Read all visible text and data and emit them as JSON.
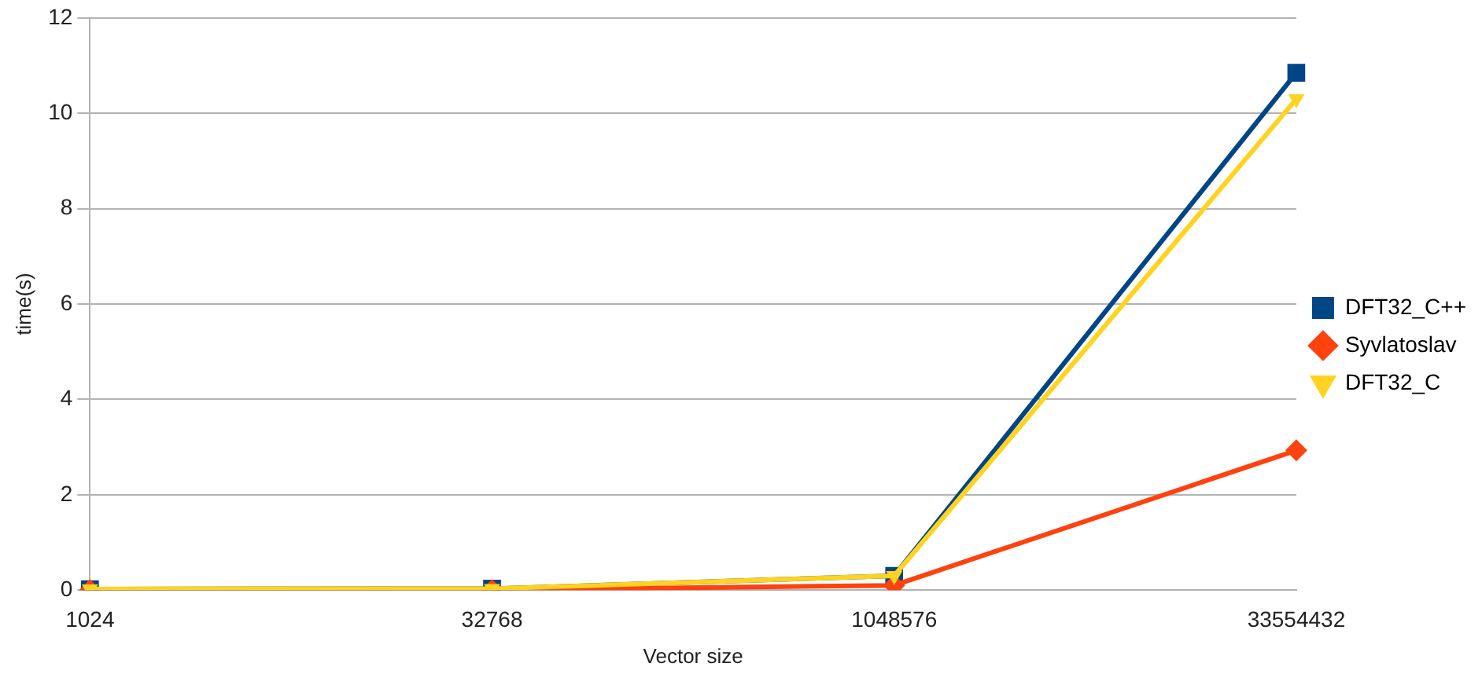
{
  "chart_data": {
    "type": "line",
    "xlabel": "Vector size",
    "ylabel": "time(s)",
    "categories": [
      "1024",
      "32768",
      "1048576",
      "33554432"
    ],
    "series": [
      {
        "name": "DFT32_C++",
        "color": "#004586",
        "marker": "square",
        "values": [
          0.02,
          0.03,
          0.3,
          10.85
        ]
      },
      {
        "name": "Syvlatoslav",
        "color": "#ff420e",
        "marker": "diamond",
        "values": [
          0,
          0,
          0.1,
          2.93
        ]
      },
      {
        "name": "DFT32_C",
        "color": "#ffd320",
        "marker": "triangle",
        "values": [
          0.02,
          0.03,
          0.3,
          10.3
        ]
      }
    ],
    "ylim": [
      0,
      12
    ],
    "yticks": [
      0,
      2,
      4,
      6,
      8,
      10,
      12
    ],
    "grid": "y",
    "legend": "right",
    "line_style": "solid"
  }
}
